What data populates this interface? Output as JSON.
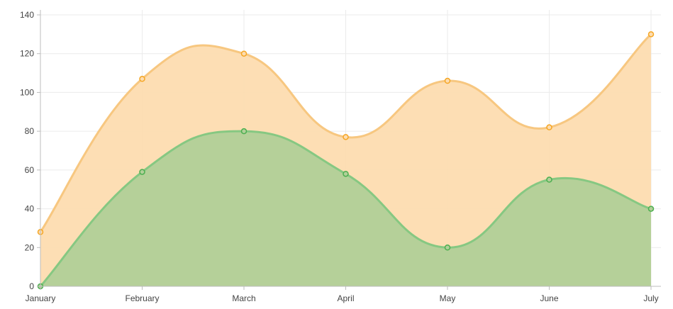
{
  "chart_data": {
    "type": "area",
    "categories": [
      "January",
      "February",
      "March",
      "April",
      "May",
      "June",
      "July"
    ],
    "series": [
      {
        "values": [
          28,
          107,
          120,
          77,
          106,
          82,
          130
        ],
        "line_color": "#f7c780",
        "fill_color": "#fddcb0",
        "point_color": "#f5a623"
      },
      {
        "values": [
          0,
          59,
          80,
          58,
          20,
          55,
          40
        ],
        "line_color": "#86c882",
        "fill_color": "#b1cf98",
        "point_color": "#4caf50"
      }
    ],
    "y_ticks": [
      "0",
      "20",
      "40",
      "60",
      "80",
      "100",
      "120",
      "140"
    ],
    "ylim": [
      0,
      140
    ],
    "grid": true,
    "title": "",
    "xlabel": "",
    "ylabel": "",
    "colors": {
      "grid": "#ebebeb",
      "axis": "#bdbdbd",
      "tick_text": "#444444"
    }
  }
}
